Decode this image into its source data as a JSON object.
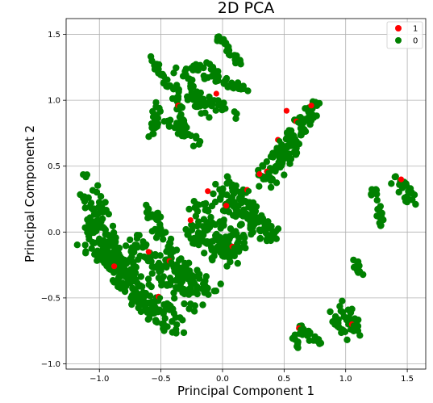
{
  "chart_data": {
    "type": "scatter",
    "title": "2D PCA",
    "xlabel": "Principal Component 1",
    "ylabel": "Principal Component 2",
    "xlim": [
      -1.27,
      1.65
    ],
    "ylim": [
      -1.04,
      1.62
    ],
    "xticks": [
      -1.0,
      -0.5,
      0.0,
      0.5,
      1.0,
      1.5
    ],
    "xtick_labels": [
      "−1.0",
      "−0.5",
      "0.0",
      "0.5",
      "1.0",
      "1.5"
    ],
    "yticks": [
      -1.0,
      -0.5,
      0.0,
      0.5,
      1.0,
      1.5
    ],
    "ytick_labels": [
      "−1.0",
      "−0.5",
      "0.0",
      "0.5",
      "1.0",
      "1.5"
    ],
    "grid": true,
    "legend_position": "top-right",
    "series": [
      {
        "name": "1",
        "color": "#ff0000",
        "points": [
          [
            0.52,
            0.92
          ],
          [
            0.6,
            0.84
          ],
          [
            0.72,
            0.96
          ],
          [
            0.36,
            0.46
          ],
          [
            0.3,
            0.44
          ],
          [
            -0.43,
            -0.22
          ],
          [
            -0.12,
            0.31
          ],
          [
            0.08,
            -0.11
          ],
          [
            -0.26,
            0.09
          ],
          [
            -0.52,
            -0.49
          ],
          [
            -0.88,
            -0.26
          ],
          [
            0.62,
            -0.73
          ],
          [
            -0.05,
            1.05
          ],
          [
            -0.36,
            0.96
          ],
          [
            0.03,
            0.2
          ],
          [
            0.45,
            0.7
          ],
          [
            -0.6,
            -0.15
          ],
          [
            0.2,
            0.32
          ],
          [
            1.45,
            0.4
          ],
          [
            1.05,
            -0.7
          ]
        ]
      },
      {
        "name": "0",
        "color": "#008000",
        "clusters": [
          {
            "kind": "line",
            "from": [
              -1.1,
              0.38
            ],
            "to": [
              -0.85,
              -0.25
            ],
            "width": 0.09,
            "n": 70
          },
          {
            "kind": "line",
            "from": [
              -1.12,
              -0.05
            ],
            "to": [
              -0.55,
              -0.62
            ],
            "width": 0.09,
            "n": 90
          },
          {
            "kind": "line",
            "from": [
              -0.95,
              -0.12
            ],
            "to": [
              -0.38,
              -0.72
            ],
            "width": 0.1,
            "n": 90
          },
          {
            "kind": "line",
            "from": [
              -0.72,
              -0.05
            ],
            "to": [
              -0.22,
              -0.55
            ],
            "width": 0.1,
            "n": 80
          },
          {
            "kind": "line",
            "from": [
              -1.05,
              0.1
            ],
            "to": [
              -0.7,
              -0.4
            ],
            "width": 0.1,
            "n": 70
          },
          {
            "kind": "line",
            "from": [
              -0.62,
              0.22
            ],
            "to": [
              -0.3,
              -0.4
            ],
            "width": 0.06,
            "n": 50
          },
          {
            "kind": "line",
            "from": [
              -0.45,
              -0.2
            ],
            "to": [
              -0.05,
              -0.45
            ],
            "width": 0.08,
            "n": 50
          },
          {
            "kind": "line",
            "from": [
              -0.28,
              0.0
            ],
            "to": [
              0.08,
              -0.22
            ],
            "width": 0.09,
            "n": 60
          },
          {
            "kind": "line",
            "from": [
              -0.22,
              0.18
            ],
            "to": [
              0.15,
              -0.12
            ],
            "width": 0.1,
            "n": 70
          },
          {
            "kind": "line",
            "from": [
              -0.05,
              0.25
            ],
            "to": [
              0.45,
              -0.05
            ],
            "width": 0.1,
            "n": 70
          },
          {
            "kind": "line",
            "from": [
              0.0,
              0.4
            ],
            "to": [
              0.32,
              0.05
            ],
            "width": 0.08,
            "n": 50
          },
          {
            "kind": "line",
            "from": [
              0.3,
              0.4
            ],
            "to": [
              0.75,
              0.95
            ],
            "width": 0.07,
            "n": 90
          },
          {
            "kind": "line",
            "from": [
              0.4,
              0.38
            ],
            "to": [
              0.6,
              0.7
            ],
            "width": 0.06,
            "n": 40
          },
          {
            "kind": "line",
            "from": [
              -0.58,
              1.32
            ],
            "to": [
              -0.43,
              1.08
            ],
            "width": 0.03,
            "n": 20
          },
          {
            "kind": "line",
            "from": [
              -0.4,
              1.18
            ],
            "to": [
              -0.34,
              0.82
            ],
            "width": 0.04,
            "n": 25
          },
          {
            "kind": "line",
            "from": [
              -0.52,
              0.98
            ],
            "to": [
              -0.58,
              0.72
            ],
            "width": 0.04,
            "n": 20
          },
          {
            "kind": "line",
            "from": [
              -0.46,
              0.88
            ],
            "to": [
              -0.18,
              0.65
            ],
            "width": 0.05,
            "n": 30
          },
          {
            "kind": "line",
            "from": [
              -0.35,
              1.25
            ],
            "to": [
              -0.12,
              0.88
            ],
            "width": 0.05,
            "n": 35
          },
          {
            "kind": "line",
            "from": [
              -0.25,
              1.25
            ],
            "to": [
              0.2,
              1.05
            ],
            "width": 0.05,
            "n": 35
          },
          {
            "kind": "line",
            "from": [
              -0.28,
              1.05
            ],
            "to": [
              0.15,
              0.88
            ],
            "width": 0.05,
            "n": 35
          },
          {
            "kind": "line",
            "from": [
              -0.03,
              1.48
            ],
            "to": [
              0.15,
              1.27
            ],
            "width": 0.03,
            "n": 25
          },
          {
            "kind": "line",
            "from": [
              -0.12,
              1.3
            ],
            "to": [
              -0.02,
              1.15
            ],
            "width": 0.03,
            "n": 12
          },
          {
            "kind": "line",
            "from": [
              1.22,
              0.35
            ],
            "to": [
              1.3,
              0.05
            ],
            "width": 0.03,
            "n": 25
          },
          {
            "kind": "line",
            "from": [
              1.38,
              0.42
            ],
            "to": [
              1.55,
              0.25
            ],
            "width": 0.06,
            "n": 30
          },
          {
            "kind": "line",
            "from": [
              1.08,
              -0.2
            ],
            "to": [
              1.12,
              -0.35
            ],
            "width": 0.03,
            "n": 12
          },
          {
            "kind": "line",
            "from": [
              0.98,
              -0.55
            ],
            "to": [
              1.1,
              -0.75
            ],
            "width": 0.05,
            "n": 25
          },
          {
            "kind": "line",
            "from": [
              0.88,
              -0.62
            ],
            "to": [
              1.0,
              -0.8
            ],
            "width": 0.03,
            "n": 15
          },
          {
            "kind": "line",
            "from": [
              0.6,
              -0.72
            ],
            "to": [
              0.78,
              -0.86
            ],
            "width": 0.04,
            "n": 20
          },
          {
            "kind": "line",
            "from": [
              0.58,
              -0.78
            ],
            "to": [
              0.62,
              -0.9
            ],
            "width": 0.02,
            "n": 8
          }
        ]
      }
    ]
  }
}
